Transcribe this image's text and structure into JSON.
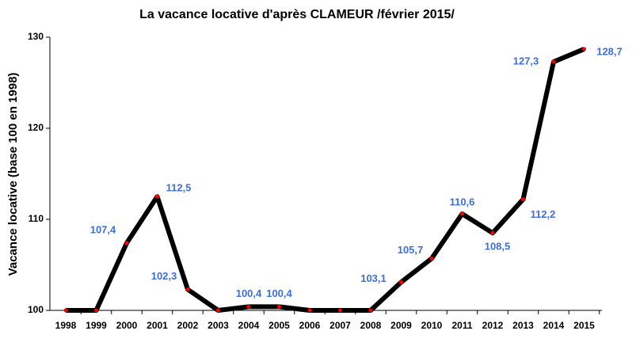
{
  "chart_data": {
    "type": "line",
    "title": "La vacance locative d'après CLAMEUR /février 2015/",
    "y_label": "Vacance locative (base 100 en 1998)",
    "categories": [
      "1998",
      "1999",
      "2000",
      "2001",
      "2002",
      "2003",
      "2004",
      "2005",
      "2006",
      "2007",
      "2008",
      "2009",
      "2010",
      "2011",
      "2012",
      "2013",
      "2014",
      "2015"
    ],
    "series": [
      {
        "name": "Vacance locative",
        "color": "#000000",
        "marker_color": "#ff0000",
        "values": [
          100,
          100,
          107.4,
          112.5,
          102.3,
          100,
          100.4,
          100.4,
          100,
          100,
          100,
          103.1,
          105.7,
          110.6,
          108.5,
          112.2,
          127.3,
          128.7
        ],
        "value_labels": [
          null,
          null,
          "107,4",
          "112,5",
          "102,3",
          null,
          "100,4",
          "100,4",
          null,
          null,
          null,
          "103,1",
          "105,7",
          "110,6",
          "108,5",
          "112,2",
          "127,3",
          "128,7"
        ]
      }
    ],
    "ylim": [
      100,
      130
    ],
    "yticks": [
      100,
      110,
      120,
      130
    ],
    "grid": false
  }
}
